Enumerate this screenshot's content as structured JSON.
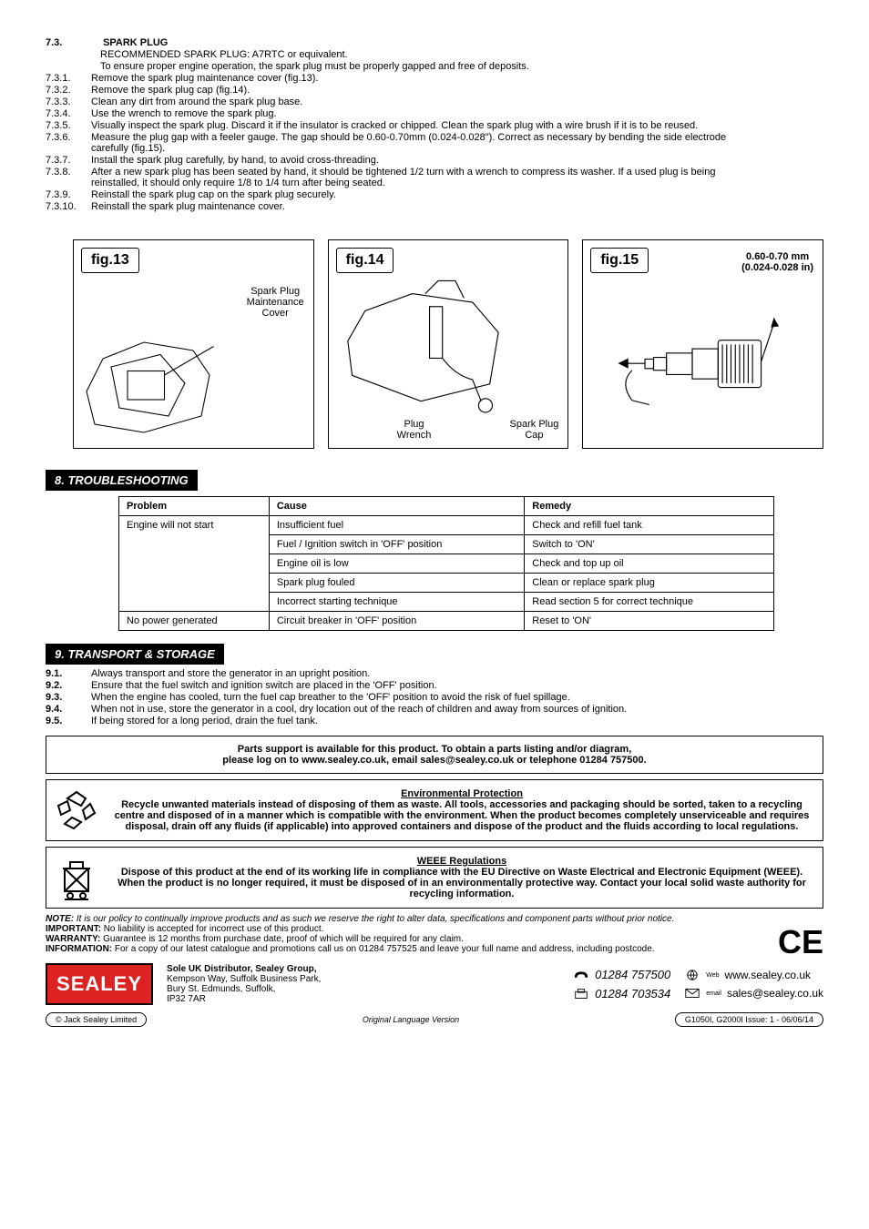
{
  "s73": {
    "num": "7.3.",
    "title": "SPARK PLUG",
    "rec": "RECOMMENDED SPARK PLUG: A7RTC or equivalent.",
    "intro": "To ensure proper engine operation, the spark plug must be properly gapped and free of deposits.",
    "items": [
      {
        "n": "7.3.1.",
        "t": "Remove the spark plug maintenance cover (fig.13)."
      },
      {
        "n": "7.3.2.",
        "t": "Remove the spark plug cap (fig.14)."
      },
      {
        "n": "7.3.3.",
        "t": "Clean any dirt from around the spark plug base."
      },
      {
        "n": "7.3.4.",
        "t": "Use the wrench to remove the spark plug."
      },
      {
        "n": "7.3.5.",
        "t": "Visually inspect the spark plug. Discard it if the insulator is cracked or chipped. Clean the spark plug with a wire brush if it is to be reused."
      },
      {
        "n": "7.3.6.",
        "t": "Measure the plug gap with a feeler gauge. The gap should be 0.60-0.70mm (0.024-0.028\"). Correct as necessary by bending the side electrode carefully (fig.15)."
      },
      {
        "n": "7.3.7.",
        "t": "Install the spark plug carefully, by hand, to avoid cross-threading."
      },
      {
        "n": "7.3.8.",
        "t": "After a new spark plug has been seated by hand, it should be tightened 1/2 turn with a wrench to compress its washer. If a used plug is being reinstalled, it should only require 1/8 to 1/4 turn after being seated."
      },
      {
        "n": "7.3.9.",
        "t": "Reinstall the spark plug cap on the spark plug securely."
      },
      {
        "n": "7.3.10.",
        "t": "Reinstall the spark plug maintenance cover."
      }
    ]
  },
  "figs": {
    "f13": {
      "label": "fig.13",
      "text": "Spark Plug\nMaintenance\nCover"
    },
    "f14": {
      "label": "fig.14",
      "text1": "Plug\nWrench",
      "text2": "Spark Plug\nCap"
    },
    "f15": {
      "label": "fig.15",
      "text": "0.60-0.70 mm\n(0.024-0.028 in)"
    }
  },
  "s8": {
    "header": "8.   TROUBLESHOOTING",
    "cols": [
      "Problem",
      "Cause",
      "Remedy"
    ],
    "rows": [
      [
        "Engine will not start",
        "Insufficient fuel",
        "Check and refill fuel tank"
      ],
      [
        "",
        "Fuel / Ignition switch in 'OFF' position",
        "Switch to 'ON'"
      ],
      [
        "",
        "Engine oil is low",
        "Check and top up oil"
      ],
      [
        "",
        "Spark plug fouled",
        "Clean or replace spark plug"
      ],
      [
        "",
        "Incorrect starting technique",
        "Read section 5 for correct technique"
      ],
      [
        "No power generated",
        "Circuit breaker in 'OFF'  position",
        "Reset to 'ON'"
      ]
    ]
  },
  "s9": {
    "header": "9.   TRANSPORT  & STORAGE",
    "items": [
      {
        "n": "9.1.",
        "t": "Always transport and store the generator in an upright position."
      },
      {
        "n": "9.2.",
        "t": "Ensure that the fuel switch and ignition switch are placed in the 'OFF' position."
      },
      {
        "n": "9.3.",
        "t": "When the engine has cooled, turn the fuel cap breather to the 'OFF' position to avoid the risk of fuel spillage."
      },
      {
        "n": "9.4.",
        "t": "When not in use, store the generator in a cool, dry location out of the reach of children and away from sources of ignition."
      },
      {
        "n": "9.5.",
        "t": "If being stored for a long period, drain the fuel tank."
      }
    ]
  },
  "parts": {
    "l1": "Parts support is available for this product. To obtain a parts listing and/or diagram,",
    "l2": "please log on to www.sealey.co.uk, email sales@sealey.co.uk or telephone 01284 757500."
  },
  "env": {
    "title": "Environmental Protection",
    "body": "Recycle unwanted materials instead of disposing of them as waste. All tools, accessories and packaging should be sorted, taken to a recycling centre and disposed of in a manner which is compatible with the environment. When the product becomes completely unserviceable and requires disposal, drain off any fluids (if applicable) into approved containers and dispose of the product and the fluids according to local regulations."
  },
  "weee": {
    "title": "WEEE Regulations",
    "body": "Dispose of this product at the end of its working life in compliance with the EU Directive on Waste Electrical and Electronic Equipment (WEEE). When the product is no longer required, it must be disposed of in an environmentally protective way. Contact your local solid waste authority for recycling information."
  },
  "notes": {
    "note": "NOTE: It is our policy to continually improve products and as such we reserve the right to alter data, specifications and component parts without prior notice.",
    "important": "IMPORTANT: No liability is accepted for incorrect use of this product.",
    "warranty": "WARRANTY: Guarantee is 12 months from purchase date, proof of which will be required for any claim.",
    "info": "INFORMATION: For a copy of our latest catalogue and promotions call us on 01284 757525 and leave your full name and address, including postcode."
  },
  "footer": {
    "logo": "SEALEY",
    "addr_bold": "Sole UK Distributor, Sealey Group,",
    "addr": "Kempson Way, Suffolk Business Park,\nBury St. Edmunds, Suffolk,\nIP32 7AR",
    "phone": "01284 757500",
    "fax": "01284 703534",
    "web_label": "Web",
    "web": "www.sealey.co.uk",
    "email_label": "email",
    "email": "sales@sealey.co.uk"
  },
  "bottom": {
    "copyright": "© Jack Sealey Limited",
    "center": "Original Language Version",
    "right": "G1050I, G2000I     Issue: 1 - 06/06/14"
  }
}
